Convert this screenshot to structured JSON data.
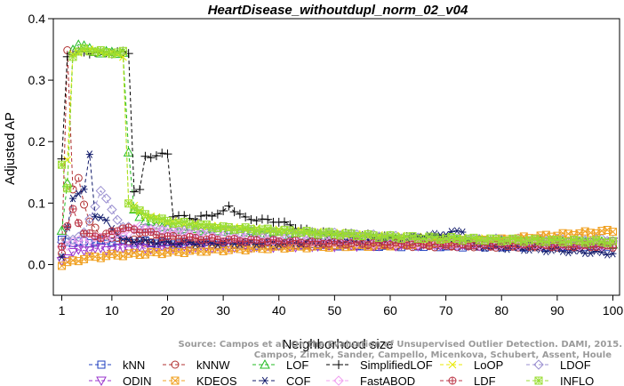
{
  "chart_data": {
    "type": "line",
    "title": "HeartDisease_withoutdupl_norm_02_v04",
    "xlabel": "Neighborhood size",
    "ylabel": "Adjusted AP",
    "xlim": [
      1,
      100
    ],
    "ylim": [
      -0.05,
      0.4
    ],
    "x_ticks": [
      1,
      10,
      20,
      30,
      40,
      50,
      60,
      70,
      80,
      90,
      100
    ],
    "y_ticks": [
      0.0,
      0.1,
      0.2,
      0.3,
      0.4
    ],
    "y_tick_labels": [
      "0.0",
      "0.1",
      "0.2",
      "0.3",
      "0.4"
    ],
    "grid": false,
    "legend_position": "bottom",
    "watermark": [
      "Source: Campos et al. On the Evaluation of Unsupervised Outlier Detection. DAMI, 2015.",
      "Campos, Zimek, Sander, Campello, Micenkova, Schubert, Assent, Houle"
    ],
    "series": [
      {
        "name": "kNN",
        "color": "#1f3fbf",
        "marker": "square",
        "knots": [
          [
            1,
            0.038
          ],
          [
            5,
            0.036
          ],
          [
            10,
            0.039
          ],
          [
            20,
            0.035
          ],
          [
            40,
            0.033
          ],
          [
            60,
            0.031
          ],
          [
            80,
            0.03
          ],
          [
            100,
            0.031
          ]
        ]
      },
      {
        "name": "kNNW",
        "color": "#b03030",
        "marker": "circle",
        "knots": [
          [
            1,
            0.02
          ],
          [
            2,
            0.35
          ],
          [
            3,
            0.12
          ],
          [
            4,
            0.14
          ],
          [
            5,
            0.1
          ],
          [
            6,
            0.07
          ],
          [
            8,
            0.045
          ],
          [
            12,
            0.04
          ],
          [
            20,
            0.035
          ],
          [
            40,
            0.032
          ],
          [
            60,
            0.031
          ],
          [
            80,
            0.03
          ],
          [
            100,
            0.03
          ]
        ]
      },
      {
        "name": "LOF",
        "color": "#22bb22",
        "marker": "triangle-up",
        "knots": [
          [
            1,
            0.055
          ],
          [
            2,
            0.13
          ],
          [
            3,
            0.35
          ],
          [
            4,
            0.36
          ],
          [
            6,
            0.35
          ],
          [
            8,
            0.345
          ],
          [
            12,
            0.345
          ],
          [
            13,
            0.18
          ],
          [
            14,
            0.09
          ],
          [
            16,
            0.07
          ],
          [
            20,
            0.06
          ],
          [
            30,
            0.055
          ],
          [
            40,
            0.05
          ],
          [
            50,
            0.045
          ],
          [
            60,
            0.04
          ],
          [
            80,
            0.037
          ],
          [
            100,
            0.035
          ]
        ]
      },
      {
        "name": "SimplifiedLOF",
        "color": "#000000",
        "marker": "plus",
        "knots": [
          [
            1,
            0.17
          ],
          [
            2,
            0.34
          ],
          [
            4,
            0.345
          ],
          [
            8,
            0.345
          ],
          [
            13,
            0.345
          ],
          [
            14,
            0.12
          ],
          [
            15,
            0.12
          ],
          [
            16,
            0.175
          ],
          [
            20,
            0.18
          ],
          [
            21,
            0.08
          ],
          [
            25,
            0.075
          ],
          [
            30,
            0.085
          ],
          [
            31,
            0.095
          ],
          [
            34,
            0.075
          ],
          [
            40,
            0.07
          ],
          [
            45,
            0.055
          ],
          [
            50,
            0.05
          ],
          [
            60,
            0.045
          ],
          [
            70,
            0.04
          ],
          [
            80,
            0.037
          ],
          [
            100,
            0.035
          ]
        ]
      },
      {
        "name": "LoOP",
        "color": "#e8e800",
        "marker": "x",
        "knots": [
          [
            1,
            0.165
          ],
          [
            2,
            0.17
          ],
          [
            3,
            0.34
          ],
          [
            5,
            0.35
          ],
          [
            9,
            0.345
          ],
          [
            12,
            0.34
          ],
          [
            13,
            0.1
          ],
          [
            16,
            0.08
          ],
          [
            20,
            0.07
          ],
          [
            30,
            0.06
          ],
          [
            40,
            0.055
          ],
          [
            50,
            0.05
          ],
          [
            60,
            0.045
          ],
          [
            80,
            0.04
          ],
          [
            100,
            0.037
          ]
        ]
      },
      {
        "name": "LDOF",
        "color": "#9a8fd0",
        "marker": "diamond",
        "knots": [
          [
            1,
            0.035
          ],
          [
            5,
            0.05
          ],
          [
            8,
            0.12
          ],
          [
            12,
            0.06
          ],
          [
            20,
            0.055
          ],
          [
            30,
            0.055
          ],
          [
            40,
            0.05
          ],
          [
            50,
            0.05
          ],
          [
            60,
            0.045
          ],
          [
            70,
            0.04
          ],
          [
            80,
            0.04
          ],
          [
            100,
            0.04
          ]
        ]
      },
      {
        "name": "ODIN",
        "color": "#9933cc",
        "marker": "triangle-down",
        "knots": [
          [
            1,
            0.005
          ],
          [
            3,
            0.02
          ],
          [
            6,
            0.025
          ],
          [
            10,
            0.025
          ],
          [
            20,
            0.028
          ],
          [
            40,
            0.03
          ],
          [
            60,
            0.032
          ],
          [
            80,
            0.033
          ],
          [
            100,
            0.035
          ]
        ]
      },
      {
        "name": "KDEOS",
        "color": "#f0a020",
        "marker": "square-cross",
        "knots": [
          [
            1,
            0.0
          ],
          [
            5,
            0.01
          ],
          [
            10,
            0.015
          ],
          [
            20,
            0.02
          ],
          [
            40,
            0.028
          ],
          [
            60,
            0.032
          ],
          [
            80,
            0.04
          ],
          [
            90,
            0.048
          ],
          [
            100,
            0.055
          ]
        ]
      },
      {
        "name": "COF",
        "color": "#101a6a",
        "marker": "asterisk",
        "knots": [
          [
            1,
            0.01
          ],
          [
            3,
            0.11
          ],
          [
            5,
            0.12
          ],
          [
            6,
            0.18
          ],
          [
            7,
            0.08
          ],
          [
            9,
            0.07
          ],
          [
            12,
            0.04
          ],
          [
            20,
            0.035
          ],
          [
            40,
            0.035
          ],
          [
            60,
            0.04
          ],
          [
            70,
            0.05
          ],
          [
            73,
            0.055
          ],
          [
            75,
            0.03
          ],
          [
            85,
            0.025
          ],
          [
            100,
            0.018
          ]
        ]
      },
      {
        "name": "FastABOD",
        "color": "#f0a0f0",
        "marker": "diamond",
        "knots": [
          [
            1,
            0.03
          ],
          [
            5,
            0.04
          ],
          [
            10,
            0.045
          ],
          [
            15,
            0.06
          ],
          [
            20,
            0.055
          ],
          [
            30,
            0.045
          ],
          [
            40,
            0.04
          ],
          [
            60,
            0.035
          ],
          [
            80,
            0.033
          ],
          [
            100,
            0.032
          ]
        ]
      },
      {
        "name": "LDF",
        "color": "#bb3344",
        "marker": "circle-plus",
        "knots": [
          [
            1,
            0.03
          ],
          [
            3,
            0.09
          ],
          [
            5,
            0.05
          ],
          [
            8,
            0.045
          ],
          [
            12,
            0.06
          ],
          [
            20,
            0.045
          ],
          [
            30,
            0.04
          ],
          [
            50,
            0.035
          ],
          [
            70,
            0.032
          ],
          [
            100,
            0.03
          ]
        ]
      },
      {
        "name": "INFLO",
        "color": "#99dd33",
        "marker": "star-square",
        "knots": [
          [
            1,
            0.16
          ],
          [
            2,
            0.125
          ],
          [
            3,
            0.34
          ],
          [
            5,
            0.35
          ],
          [
            9,
            0.345
          ],
          [
            12,
            0.345
          ],
          [
            13,
            0.1
          ],
          [
            16,
            0.08
          ],
          [
            20,
            0.07
          ],
          [
            30,
            0.06
          ],
          [
            40,
            0.055
          ],
          [
            50,
            0.05
          ],
          [
            60,
            0.045
          ],
          [
            80,
            0.04
          ],
          [
            100,
            0.037
          ]
        ]
      }
    ]
  }
}
